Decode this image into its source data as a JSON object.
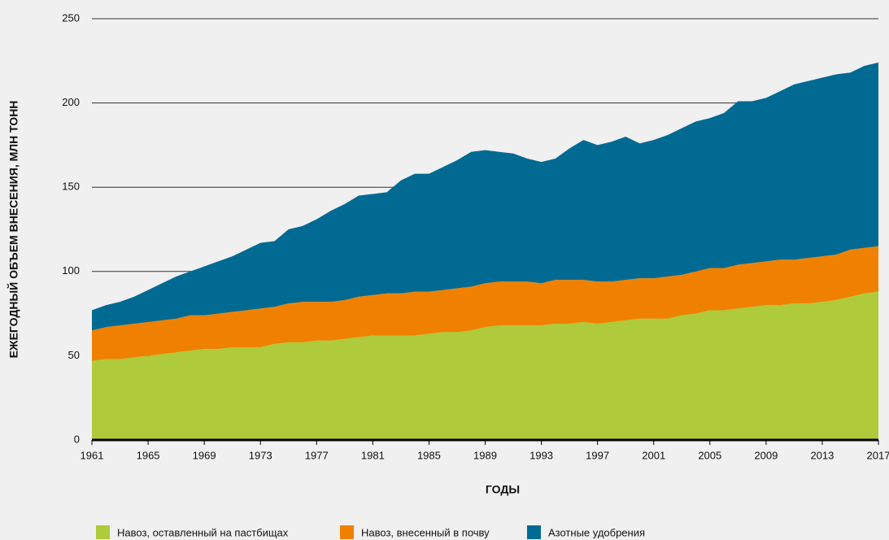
{
  "chart_data": {
    "type": "stacked_area",
    "x": [
      1961,
      1962,
      1963,
      1964,
      1965,
      1966,
      1967,
      1968,
      1969,
      1970,
      1971,
      1972,
      1973,
      1974,
      1975,
      1976,
      1977,
      1978,
      1979,
      1980,
      1981,
      1982,
      1983,
      1984,
      1985,
      1986,
      1987,
      1988,
      1989,
      1990,
      1991,
      1992,
      1993,
      1994,
      1995,
      1996,
      1997,
      1998,
      1999,
      2000,
      2001,
      2002,
      2003,
      2004,
      2005,
      2006,
      2007,
      2008,
      2009,
      2010,
      2011,
      2012,
      2013,
      2014,
      2015,
      2016,
      2017
    ],
    "series": [
      {
        "name": "Навоз, оставленный на пастбищах",
        "color": "#afca3b",
        "values": [
          47,
          48,
          48,
          49,
          50,
          51,
          52,
          53,
          54,
          54,
          55,
          55,
          55,
          57,
          58,
          58,
          59,
          59,
          60,
          61,
          62,
          62,
          62,
          62,
          63,
          64,
          64,
          65,
          67,
          68,
          68,
          68,
          68,
          69,
          69,
          70,
          69,
          70,
          71,
          72,
          72,
          72,
          74,
          75,
          77,
          77,
          78,
          79,
          80,
          80,
          81,
          81,
          82,
          83,
          85,
          87,
          88
        ]
      },
      {
        "name": "Навоз, внесенный в почву",
        "color": "#f08100",
        "values": [
          18,
          19,
          20,
          20,
          20,
          20,
          20,
          21,
          20,
          21,
          21,
          22,
          23,
          22,
          23,
          24,
          23,
          23,
          23,
          24,
          24,
          25,
          25,
          26,
          25,
          25,
          26,
          26,
          26,
          26,
          26,
          26,
          25,
          26,
          26,
          25,
          25,
          24,
          24,
          24,
          24,
          25,
          24,
          25,
          25,
          25,
          26,
          26,
          26,
          27,
          26,
          27,
          27,
          27,
          28,
          27,
          27
        ]
      },
      {
        "name": "Азотные удобрения",
        "color": "#006a92",
        "values": [
          12,
          13,
          14,
          16,
          19,
          22,
          25,
          26,
          29,
          31,
          33,
          36,
          39,
          39,
          44,
          45,
          49,
          54,
          57,
          60,
          60,
          60,
          67,
          70,
          70,
          73,
          76,
          80,
          79,
          77,
          76,
          73,
          72,
          72,
          78,
          83,
          81,
          83,
          85,
          80,
          82,
          84,
          87,
          89,
          89,
          92,
          97,
          96,
          97,
          100,
          104,
          105,
          106,
          107,
          105,
          108,
          109
        ]
      }
    ],
    "xlim": [
      1961,
      2017
    ],
    "xticks": [
      1961,
      1965,
      1969,
      1973,
      1977,
      1981,
      1985,
      1989,
      1993,
      1997,
      2001,
      2005,
      2009,
      2013,
      2017
    ],
    "ylim": [
      0,
      250
    ],
    "yticks": [
      0,
      50,
      100,
      150,
      200,
      250
    ],
    "grid": true,
    "xlabel": "ГОДЫ",
    "ylabel": "ЕЖЕГОДНЫЙ ОБЪЕМ ВНЕСЕНИЯ, МЛН ТОНН"
  }
}
